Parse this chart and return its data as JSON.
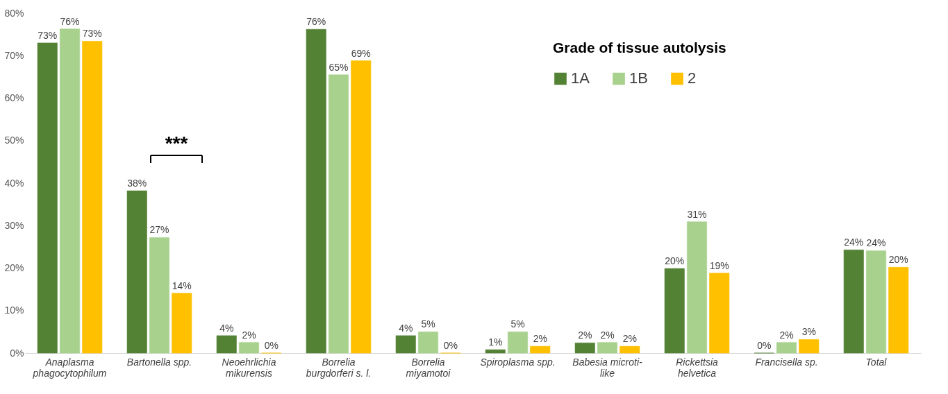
{
  "chart_data": {
    "type": "bar",
    "categories": [
      "Anaplasma\nphagocytophilum",
      "Bartonella spp.",
      "Neoehrlichia\nmikurensis",
      "Borrelia\nburgdorferi s. l.",
      "Borrelia\nmiyamotoi",
      "Spiroplasma spp.",
      "Babesia microti-\nlike",
      "Rickettsia\nhelvetica",
      "Francisella sp.",
      "Total"
    ],
    "series": [
      {
        "name": "1A",
        "color": "#548235",
        "values": [
          73.0,
          38.2,
          4.1,
          76.2,
          4.1,
          0.8,
          2.4,
          19.9,
          0,
          24.3
        ],
        "value_labels": [
          "73%",
          "38%",
          "4%",
          "76%",
          "4%",
          "1%",
          "2%",
          "20%",
          "0%",
          "24%"
        ]
      },
      {
        "name": "1B",
        "color": "#a9d18e",
        "values": [
          76.3,
          27.2,
          2.5,
          65.5,
          5.0,
          5.0,
          2.5,
          30.9,
          2.5,
          24.1
        ],
        "value_labels": [
          "76%",
          "27%",
          "2%",
          "65%",
          "5%",
          "5%",
          "2%",
          "31%",
          "2%",
          "24%"
        ]
      },
      {
        "name": "2",
        "color": "#ffc000",
        "values": [
          73.4,
          14.1,
          0,
          68.8,
          0,
          1.6,
          1.6,
          18.8,
          3.2,
          20.2
        ],
        "value_labels": [
          "73%",
          "14%",
          "0%",
          "69%",
          "0%",
          "2%",
          "2%",
          "19%",
          "3%",
          "20%"
        ]
      }
    ],
    "legend_title": "Grade of tissue autolysis",
    "legend": "top right",
    "ylim": [
      0,
      80
    ],
    "yticks": [
      {
        "value": 0,
        "label": "0%"
      },
      {
        "value": 10,
        "label": "10%"
      },
      {
        "value": 20,
        "label": "20%"
      },
      {
        "value": 30,
        "label": "30%"
      },
      {
        "value": 40,
        "label": "40%"
      },
      {
        "value": 50,
        "label": "50%"
      },
      {
        "value": 60,
        "label": "60%"
      },
      {
        "value": 70,
        "label": "70%"
      },
      {
        "value": 80,
        "label": "80%"
      }
    ],
    "grid": false,
    "annotations": [
      "***"
    ]
  }
}
